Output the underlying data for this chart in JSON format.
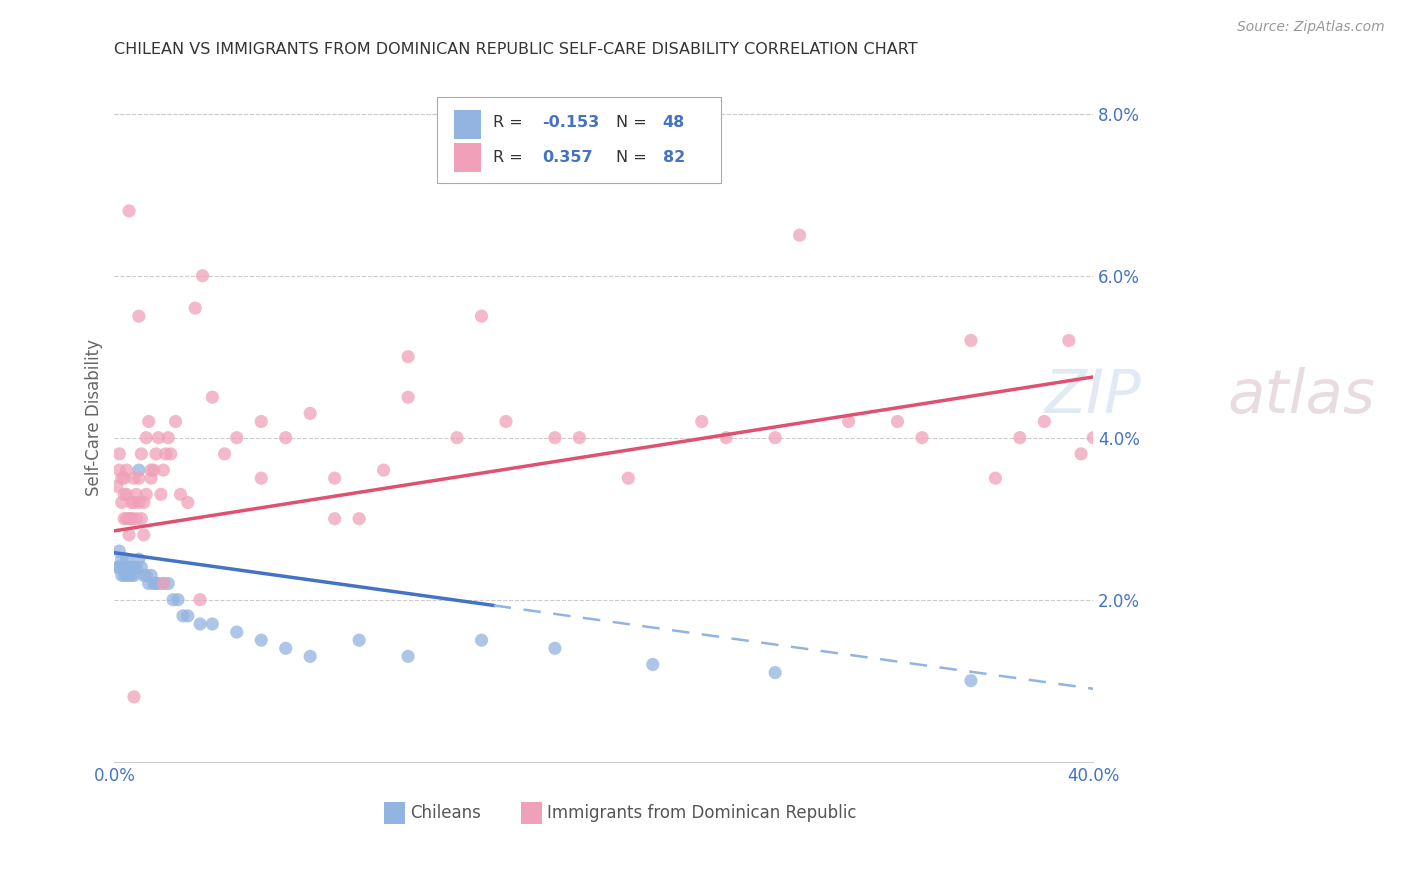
{
  "title": "CHILEAN VS IMMIGRANTS FROM DOMINICAN REPUBLIC SELF-CARE DISABILITY CORRELATION CHART",
  "source": "Source: ZipAtlas.com",
  "ylabel": "Self-Care Disability",
  "xlim": [
    0.0,
    0.4
  ],
  "ylim": [
    0.0,
    0.085
  ],
  "xtick_positions": [
    0.0,
    0.05,
    0.1,
    0.15,
    0.2,
    0.25,
    0.3,
    0.35,
    0.4
  ],
  "xtick_labels": [
    "0.0%",
    "",
    "",
    "",
    "",
    "",
    "",
    "",
    "40.0%"
  ],
  "ytick_positions": [
    0.02,
    0.04,
    0.06,
    0.08
  ],
  "ytick_labels": [
    "2.0%",
    "4.0%",
    "6.0%",
    "8.0%"
  ],
  "color_chilean": "#92b4e0",
  "color_dominican": "#f0a0b8",
  "color_line_chilean_solid": "#4472c4",
  "color_line_chilean_dash": "#92b4e0",
  "color_line_dominican": "#e05070",
  "watermark": "ZIPatlas",
  "chilean_x": [
    0.001,
    0.002,
    0.002,
    0.003,
    0.003,
    0.003,
    0.004,
    0.004,
    0.004,
    0.005,
    0.005,
    0.005,
    0.006,
    0.006,
    0.007,
    0.007,
    0.008,
    0.008,
    0.009,
    0.01,
    0.01,
    0.011,
    0.012,
    0.013,
    0.014,
    0.015,
    0.016,
    0.017,
    0.018,
    0.02,
    0.022,
    0.024,
    0.026,
    0.028,
    0.03,
    0.035,
    0.04,
    0.05,
    0.06,
    0.07,
    0.08,
    0.1,
    0.12,
    0.15,
    0.18,
    0.22,
    0.27,
    0.35
  ],
  "chilean_y": [
    0.024,
    0.024,
    0.026,
    0.025,
    0.024,
    0.023,
    0.024,
    0.024,
    0.023,
    0.025,
    0.024,
    0.023,
    0.024,
    0.023,
    0.024,
    0.023,
    0.024,
    0.023,
    0.024,
    0.025,
    0.036,
    0.024,
    0.023,
    0.023,
    0.022,
    0.023,
    0.022,
    0.022,
    0.022,
    0.022,
    0.022,
    0.02,
    0.02,
    0.018,
    0.018,
    0.017,
    0.017,
    0.016,
    0.015,
    0.014,
    0.013,
    0.015,
    0.013,
    0.015,
    0.014,
    0.012,
    0.011,
    0.01
  ],
  "dominican_x": [
    0.001,
    0.002,
    0.002,
    0.003,
    0.003,
    0.004,
    0.004,
    0.004,
    0.005,
    0.005,
    0.005,
    0.006,
    0.006,
    0.007,
    0.007,
    0.007,
    0.008,
    0.008,
    0.009,
    0.009,
    0.01,
    0.01,
    0.011,
    0.011,
    0.012,
    0.012,
    0.013,
    0.013,
    0.014,
    0.015,
    0.015,
    0.016,
    0.017,
    0.018,
    0.019,
    0.02,
    0.021,
    0.022,
    0.023,
    0.025,
    0.027,
    0.03,
    0.033,
    0.036,
    0.04,
    0.045,
    0.05,
    0.06,
    0.07,
    0.08,
    0.09,
    0.1,
    0.11,
    0.12,
    0.14,
    0.16,
    0.18,
    0.21,
    0.24,
    0.27,
    0.3,
    0.33,
    0.35,
    0.36,
    0.37,
    0.38,
    0.39,
    0.395,
    0.4,
    0.28,
    0.32,
    0.25,
    0.19,
    0.15,
    0.12,
    0.09,
    0.06,
    0.035,
    0.02,
    0.01,
    0.008,
    0.006
  ],
  "dominican_y": [
    0.034,
    0.036,
    0.038,
    0.032,
    0.035,
    0.03,
    0.033,
    0.035,
    0.03,
    0.033,
    0.036,
    0.03,
    0.028,
    0.03,
    0.032,
    0.03,
    0.032,
    0.035,
    0.03,
    0.033,
    0.035,
    0.032,
    0.03,
    0.038,
    0.028,
    0.032,
    0.033,
    0.04,
    0.042,
    0.036,
    0.035,
    0.036,
    0.038,
    0.04,
    0.033,
    0.036,
    0.038,
    0.04,
    0.038,
    0.042,
    0.033,
    0.032,
    0.056,
    0.06,
    0.045,
    0.038,
    0.04,
    0.042,
    0.04,
    0.043,
    0.035,
    0.03,
    0.036,
    0.045,
    0.04,
    0.042,
    0.04,
    0.035,
    0.042,
    0.04,
    0.042,
    0.04,
    0.052,
    0.035,
    0.04,
    0.042,
    0.052,
    0.038,
    0.04,
    0.065,
    0.042,
    0.04,
    0.04,
    0.055,
    0.05,
    0.03,
    0.035,
    0.02,
    0.022,
    0.055,
    0.008,
    0.068
  ],
  "line_ch_x0": 0.0,
  "line_ch_y0": 0.0258,
  "line_ch_x1": 0.4,
  "line_ch_y1": 0.009,
  "line_ch_solid_end": 0.155,
  "line_dom_x0": 0.0,
  "line_dom_y0": 0.0285,
  "line_dom_x1": 0.4,
  "line_dom_y1": 0.0475
}
